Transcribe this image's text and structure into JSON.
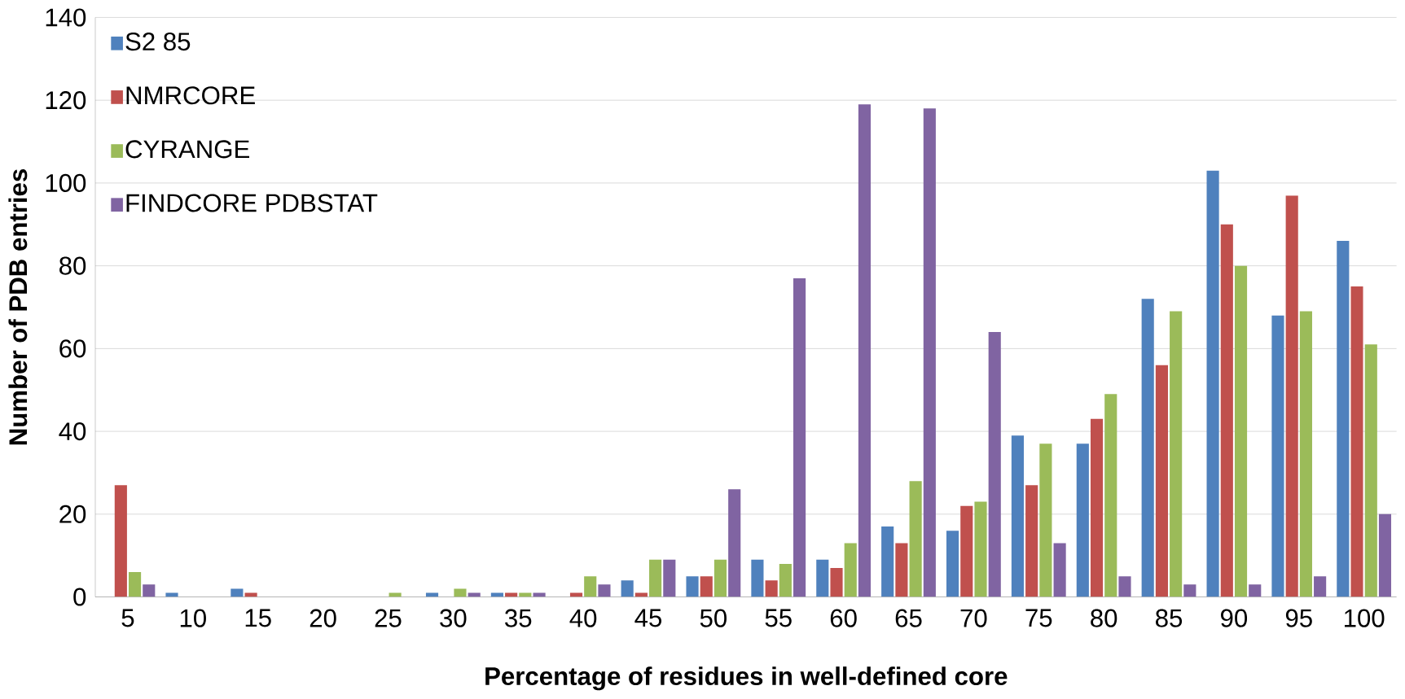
{
  "chart_data": {
    "type": "bar",
    "xlabel": "Percentage of residues in well-defined core",
    "ylabel": "Number of PDB entries",
    "categories": [
      "5",
      "10",
      "15",
      "20",
      "25",
      "30",
      "35",
      "40",
      "45",
      "50",
      "55",
      "60",
      "65",
      "70",
      "75",
      "80",
      "85",
      "90",
      "95",
      "100"
    ],
    "series": [
      {
        "name": "S2 85",
        "color": "#4f81bd",
        "values": [
          0,
          1,
          2,
          0,
          0,
          1,
          1,
          0,
          4,
          5,
          9,
          9,
          17,
          16,
          39,
          37,
          72,
          103,
          68,
          86
        ]
      },
      {
        "name": "NMRCORE",
        "color": "#c0504d",
        "values": [
          27,
          0,
          1,
          0,
          0,
          0,
          1,
          1,
          1,
          5,
          4,
          7,
          13,
          22,
          27,
          43,
          56,
          90,
          97,
          75
        ]
      },
      {
        "name": "CYRANGE",
        "color": "#9bbb59",
        "values": [
          6,
          0,
          0,
          0,
          1,
          2,
          1,
          5,
          9,
          9,
          8,
          13,
          28,
          23,
          37,
          49,
          69,
          80,
          69,
          61
        ]
      },
      {
        "name": "FINDCORE PDBSTAT",
        "color": "#8064a2",
        "values": [
          3,
          0,
          0,
          0,
          0,
          1,
          1,
          3,
          9,
          26,
          77,
          119,
          118,
          64,
          13,
          5,
          3,
          3,
          5,
          20
        ]
      }
    ],
    "ylim": [
      0,
      140
    ],
    "yticks": [
      0,
      20,
      40,
      60,
      80,
      100,
      120,
      140
    ],
    "grid": "y",
    "legend": "top left"
  }
}
